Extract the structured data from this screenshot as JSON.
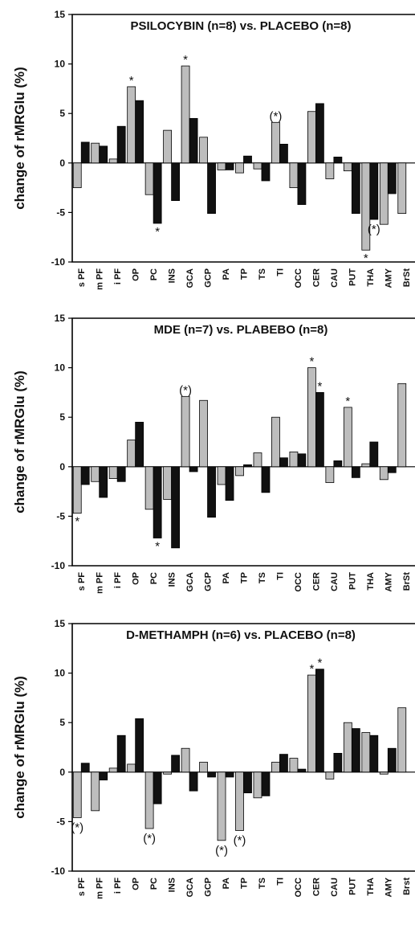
{
  "chart_data": [
    {
      "type": "bar",
      "title": "PSILOCYBIN (n=8) vs. PLACEBO (n=8)",
      "ylabel": "change of rMRGlu (%)",
      "ylim": [
        -10,
        15
      ],
      "yticks": [
        15,
        10,
        5,
        0,
        -5,
        -10
      ],
      "categories": [
        "s PF",
        "m PF",
        "i PF",
        "OP",
        "PC",
        "INS",
        "GCA",
        "GCP",
        "PA",
        "TP",
        "TS",
        "TI",
        "OCC",
        "CER",
        "CAU",
        "PUT",
        "THA",
        "AMY",
        "BrSt"
      ],
      "series": [
        {
          "values": [
            -2.5,
            2.0,
            0.4,
            7.7,
            -3.2,
            3.3,
            9.8,
            2.6,
            -0.7,
            -1.0,
            -0.6,
            4.1,
            -2.5,
            5.2,
            -1.6,
            -0.8,
            -8.8,
            -6.2,
            -5.1
          ]
        },
        {
          "values": [
            2.1,
            1.7,
            3.7,
            6.3,
            -6.1,
            -3.8,
            4.5,
            -5.1,
            -0.7,
            0.7,
            -1.8,
            1.9,
            -4.2,
            6.0,
            0.6,
            -5.1,
            -5.7,
            -3.1,
            0
          ]
        }
      ],
      "annotations": [
        {
          "category": "OP",
          "series": 0,
          "text": "*"
        },
        {
          "category": "PC",
          "series": 1,
          "text": "*"
        },
        {
          "category": "GCA",
          "series": 0,
          "text": "*"
        },
        {
          "category": "TI",
          "series": 0,
          "text": "(*)"
        },
        {
          "category": "THA",
          "series": 0,
          "text": "*"
        },
        {
          "category": "THA",
          "series": 1,
          "text": "(*)"
        }
      ]
    },
    {
      "type": "bar",
      "title": "MDE (n=7) vs. PLABEBO (n=8)",
      "ylabel": "change of rMRGlu (%)",
      "ylim": [
        -10,
        15
      ],
      "yticks": [
        15,
        10,
        5,
        0,
        -5,
        -10
      ],
      "categories": [
        "s PF",
        "m PF",
        "i PF",
        "OP",
        "PC",
        "INS",
        "GCA",
        "GCP",
        "PA",
        "TP",
        "TS",
        "TI",
        "OCC",
        "CER",
        "CAU",
        "PUT",
        "THA",
        "AMY",
        "BrSt"
      ],
      "series": [
        {
          "values": [
            -4.7,
            -1.5,
            -1.2,
            2.7,
            -4.3,
            -3.3,
            7.1,
            6.7,
            -1.8,
            -0.9,
            1.4,
            5.0,
            1.5,
            10.0,
            -1.6,
            6.0,
            0.3,
            -1.3,
            8.4
          ]
        },
        {
          "values": [
            -1.8,
            -3.1,
            -1.5,
            4.5,
            -7.2,
            -8.2,
            -0.5,
            -5.1,
            -3.4,
            0.2,
            -2.6,
            0.9,
            1.3,
            7.5,
            0.6,
            -1.1,
            2.5,
            -0.6,
            0
          ]
        }
      ],
      "annotations": [
        {
          "category": "s PF",
          "series": 0,
          "text": "*"
        },
        {
          "category": "PC",
          "series": 1,
          "text": "*"
        },
        {
          "category": "GCA",
          "series": 0,
          "text": "(*)"
        },
        {
          "category": "CER",
          "series": 0,
          "text": "*"
        },
        {
          "category": "CER",
          "series": 1,
          "text": "*"
        },
        {
          "category": "PUT",
          "series": 0,
          "text": "*"
        }
      ]
    },
    {
      "type": "bar",
      "title": "D-METHAMPH (n=6) vs. PLACEBO (n=8)",
      "ylabel": "change of rMRGlu (%)",
      "ylim": [
        -10,
        15
      ],
      "yticks": [
        15,
        10,
        5,
        0,
        -5,
        -10
      ],
      "categories": [
        "s PF",
        "m PF",
        "i PF",
        "OP",
        "PC",
        "INS",
        "GCA",
        "GCP",
        "PA",
        "TP",
        "TS",
        "TI",
        "OCC",
        "CER",
        "CAU",
        "PUT",
        "THA",
        "AMY",
        "Brst"
      ],
      "series": [
        {
          "values": [
            -4.6,
            -3.9,
            0.4,
            0.8,
            -5.7,
            -0.2,
            2.4,
            1.0,
            -6.9,
            -5.9,
            -2.6,
            1.0,
            1.4,
            9.8,
            -0.7,
            5.0,
            4.0,
            -0.2,
            6.5
          ]
        },
        {
          "values": [
            0.9,
            -0.8,
            3.7,
            5.4,
            -3.2,
            1.7,
            -1.9,
            -0.5,
            -0.5,
            -2.1,
            -2.4,
            1.8,
            0.3,
            10.4,
            1.9,
            4.4,
            3.7,
            2.4,
            0
          ]
        }
      ],
      "annotations": [
        {
          "category": "s PF",
          "series": 0,
          "text": "(*)"
        },
        {
          "category": "PC",
          "series": 0,
          "text": "(*)"
        },
        {
          "category": "PA",
          "series": 0,
          "text": "(*)"
        },
        {
          "category": "TP",
          "series": 0,
          "text": "(*)"
        },
        {
          "category": "CER",
          "series": 0,
          "text": "*"
        },
        {
          "category": "CER",
          "series": 1,
          "text": "*"
        }
      ]
    }
  ]
}
